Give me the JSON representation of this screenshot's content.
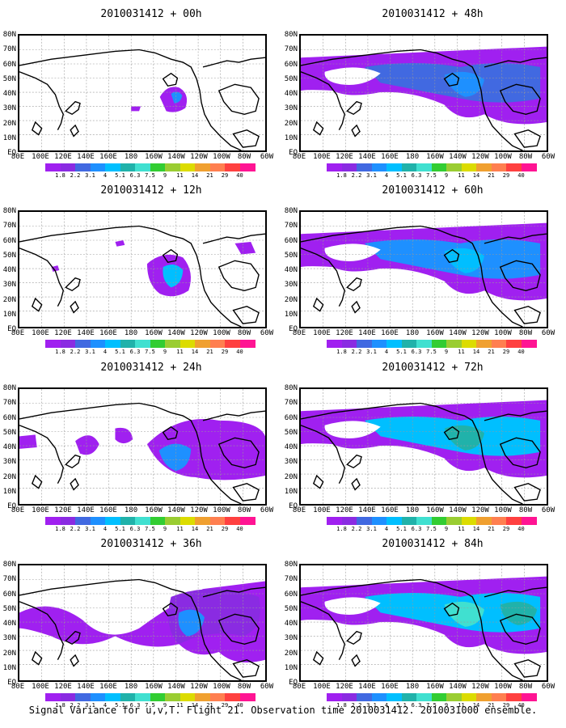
{
  "footer": "Signal Variance for u,v,T. Flight 21. Observation time 2010031412. 2010031000 ensemble.",
  "lat_labels": [
    "80N",
    "70N",
    "60N",
    "50N",
    "40N",
    "30N",
    "20N",
    "10N",
    "EQ"
  ],
  "lon_labels": [
    "80E",
    "100E",
    "120E",
    "140E",
    "160E",
    "180",
    "160W",
    "140W",
    "120W",
    "100W",
    "80W",
    "60W"
  ],
  "colorbar": {
    "labels": [
      "1.8",
      "2.2",
      "3.1",
      "4",
      "5.1",
      "6.3",
      "7.5",
      "9",
      "11",
      "14",
      "21",
      "29",
      "40"
    ],
    "colors": [
      "#a020f0",
      "#8a2be2",
      "#4169e1",
      "#1e90ff",
      "#00bfff",
      "#20b2aa",
      "#40e0d0",
      "#32cd32",
      "#9acd32",
      "#dcdc00",
      "#f0a030",
      "#ff7f50",
      "#ff4040",
      "#ff1493"
    ]
  },
  "panels": [
    {
      "title": "2010031412 + 00h",
      "level": 0
    },
    {
      "title": "2010031412 + 12h",
      "level": 1
    },
    {
      "title": "2010031412 + 24h",
      "level": 2
    },
    {
      "title": "2010031412 + 36h",
      "level": 3
    },
    {
      "title": "2010031412 + 48h",
      "level": 4
    },
    {
      "title": "2010031412 + 60h",
      "level": 5
    },
    {
      "title": "2010031412 + 72h",
      "level": 6
    },
    {
      "title": "2010031412 + 84h",
      "level": 7
    }
  ]
}
